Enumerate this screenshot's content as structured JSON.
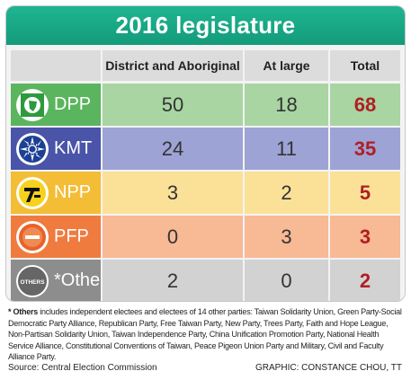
{
  "title": "2016 legislature",
  "chart_data": {
    "type": "table",
    "title": "2016 legislature",
    "columns": [
      "",
      "District and Aboriginal",
      "At large",
      "Total"
    ],
    "rows": [
      {
        "party": "DPP",
        "district_and_aboriginal": "50",
        "at_large": "18",
        "total": "68",
        "logo_label": ""
      },
      {
        "party": "KMT",
        "district_and_aboriginal": "24",
        "at_large": "11",
        "total": "35",
        "logo_label": ""
      },
      {
        "party": "NPP",
        "district_and_aboriginal": "3",
        "at_large": "2",
        "total": "5",
        "logo_label": ""
      },
      {
        "party": "PFP",
        "district_and_aboriginal": "0",
        "at_large": "3",
        "total": "3",
        "logo_label": ""
      },
      {
        "party": "*Others",
        "district_and_aboriginal": "2",
        "at_large": "0",
        "total": "2",
        "logo_label": "OTHERS"
      }
    ]
  },
  "colors": {
    "title_bg": "#17a985",
    "dpp_label": "#5bb55e",
    "dpp_light": "#a8d5a2",
    "kmt_label": "#4a54a8",
    "kmt_light": "#9ea3d6",
    "npp_label": "#f3bd35",
    "npp_light": "#fbe198",
    "pfp_label": "#f07b3f",
    "pfp_light": "#f8b995",
    "others_label": "#8d8d8d",
    "others_light": "#d2d2d2",
    "total_text": "#b01e23"
  },
  "footnote": {
    "lead": "* Others",
    "text": " includes independent electees and electees of 14 other parties: Taiwan Solidarity Union, Green Party-Social Democratic Party Alliance, Republican Party, Free Taiwan Party, New Party, Trees Party, Faith and Hope League, Non-Partisan Solidarity Union, Taiwan Independence Party, China Unification Promotion Party, National Health Service Alliance, Constitutional Conventions of Taiwan, Peace Pigeon Union Party and Military, Civil and Faculty Alliance Party."
  },
  "source": "Source: Central Election Commission",
  "credit": "GRAPHIC: CONSTANCE CHOU, TT"
}
